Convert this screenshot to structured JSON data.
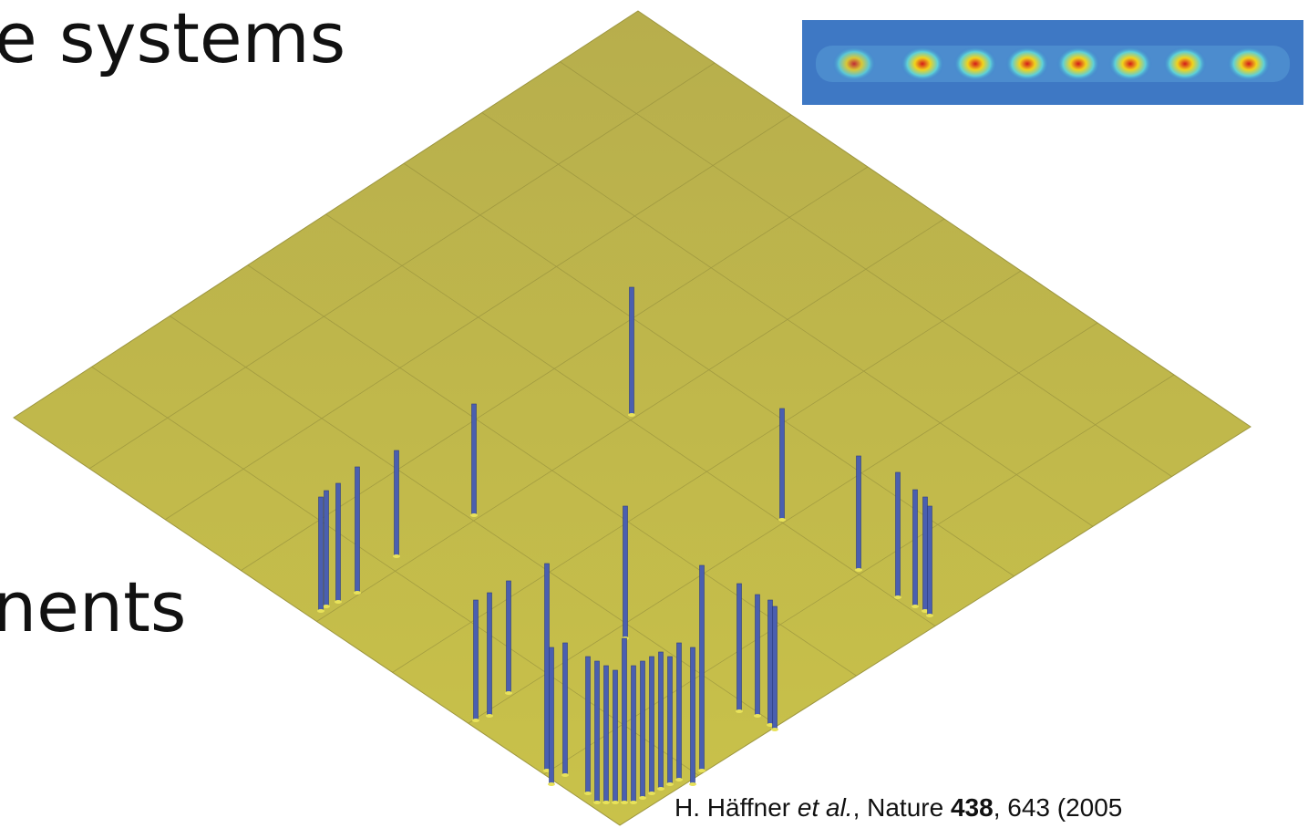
{
  "slide": {
    "heading_top": "e systems",
    "heading_bottom": "nents",
    "citation": {
      "authors": "H. Häffner ",
      "etal": "et al.",
      "journal": ", Nature ",
      "volume": "438",
      "rest": ", 643 (2005"
    }
  }
}
